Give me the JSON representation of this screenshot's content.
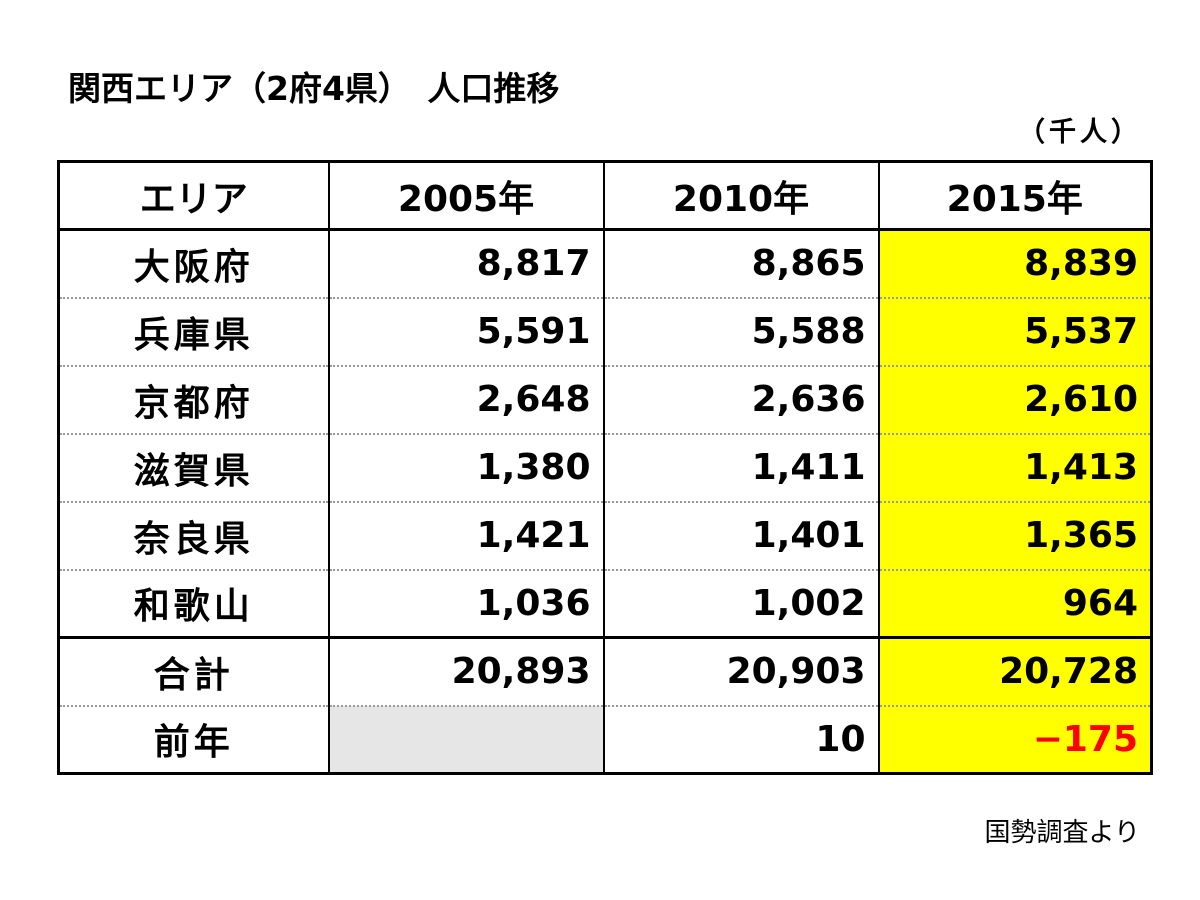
{
  "header": {
    "title": "関西エリア（2府4県）　人口推移",
    "unit": "（千人）"
  },
  "table": {
    "columns": [
      "エリア",
      "2005年",
      "2010年",
      "2015年"
    ],
    "rows": [
      [
        "大阪府",
        "8,817",
        "8,865",
        "8,839"
      ],
      [
        "兵庫県",
        "5,591",
        "5,588",
        "5,537"
      ],
      [
        "京都府",
        "2,648",
        "2,636",
        "2,610"
      ],
      [
        "滋賀県",
        "1,380",
        "1,411",
        "1,413"
      ],
      [
        "奈良県",
        "1,421",
        "1,401",
        "1,365"
      ],
      [
        "和歌山",
        "1,036",
        "1,002",
        "964"
      ],
      [
        "合計",
        "20,893",
        "20,903",
        "20,728"
      ],
      [
        "前年",
        null,
        "10",
        "−175"
      ]
    ]
  },
  "footer": {
    "source": "国勢調査より"
  }
}
